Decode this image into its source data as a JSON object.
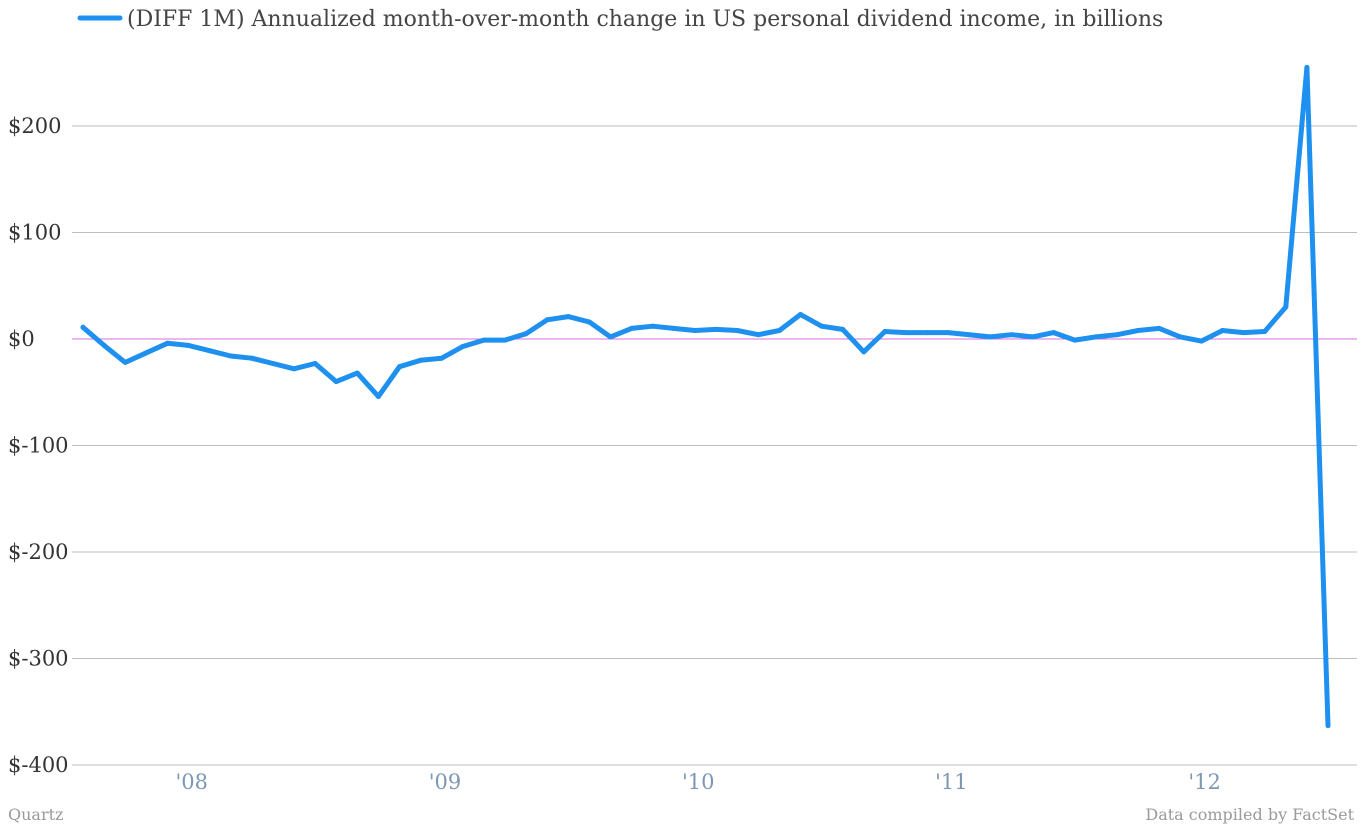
{
  "colors": {
    "line": "#1e90ef",
    "zero_line": "#d86fd8",
    "grid": "#bdbdbd",
    "xtick": "#7d98b3"
  },
  "chart_data": {
    "type": "line",
    "legend": {
      "placement": "top-left",
      "label": "(DIFF 1M) Annualized month-over-month change in US personal dividend income, in billions"
    },
    "series": [
      {
        "name": "(DIFF 1M) Annualized month-over-month change in US personal dividend income, in billions",
        "x": [
          "2007-08",
          "2007-09",
          "2007-10",
          "2007-11",
          "2007-12",
          "2008-01",
          "2008-02",
          "2008-03",
          "2008-04",
          "2008-05",
          "2008-06",
          "2008-07",
          "2008-08",
          "2008-09",
          "2008-10",
          "2008-11",
          "2008-12",
          "2009-01",
          "2009-02",
          "2009-03",
          "2009-04",
          "2009-05",
          "2009-06",
          "2009-07",
          "2009-08",
          "2009-09",
          "2009-10",
          "2009-11",
          "2009-12",
          "2010-01",
          "2010-02",
          "2010-03",
          "2010-04",
          "2010-05",
          "2010-06",
          "2010-07",
          "2010-08",
          "2010-09",
          "2010-10",
          "2010-11",
          "2010-12",
          "2011-01",
          "2011-02",
          "2011-03",
          "2011-04",
          "2011-05",
          "2011-06",
          "2011-07",
          "2011-08",
          "2011-09",
          "2011-10",
          "2011-11",
          "2011-12",
          "2012-01",
          "2012-02",
          "2012-03",
          "2012-04",
          "2012-05",
          "2012-06",
          "2012-07"
        ],
        "values": [
          11,
          -6,
          -22,
          -13,
          -4,
          -6,
          -11,
          -16,
          -18,
          -23,
          -28,
          -23,
          -40,
          -32,
          -54,
          -26,
          -20,
          -18,
          -7,
          -1,
          -1,
          5,
          18,
          21,
          16,
          2,
          10,
          12,
          10,
          8,
          9,
          8,
          4,
          8,
          23,
          12,
          9,
          -12,
          7,
          6,
          6,
          6,
          4,
          2,
          4,
          2,
          6,
          -1,
          2,
          4,
          8,
          10,
          2,
          -2,
          8,
          6,
          7,
          30,
          255,
          -363
        ]
      }
    ],
    "x_ticks": [
      {
        "label": "'08",
        "x": "2008-01"
      },
      {
        "label": "'09",
        "x": "2009-01"
      },
      {
        "label": "'10",
        "x": "2010-01"
      },
      {
        "label": "'11",
        "x": "2011-01"
      },
      {
        "label": "'12",
        "x": "2012-01"
      }
    ],
    "y_ticks": [
      {
        "label": "$200",
        "value": 200
      },
      {
        "label": "$100",
        "value": 100
      },
      {
        "label": "$0",
        "value": 0
      },
      {
        "label": "$-100",
        "value": -100
      },
      {
        "label": "$-200",
        "value": -200
      },
      {
        "label": "$-300",
        "value": -300
      },
      {
        "label": "$-400",
        "value": -400
      }
    ],
    "ylim": [
      -400,
      250
    ],
    "xlim": [
      "2007-08",
      "2012-07"
    ],
    "grid": true
  },
  "footer": {
    "source_left": "Quartz",
    "source_right": "Data compiled by FactSet"
  }
}
